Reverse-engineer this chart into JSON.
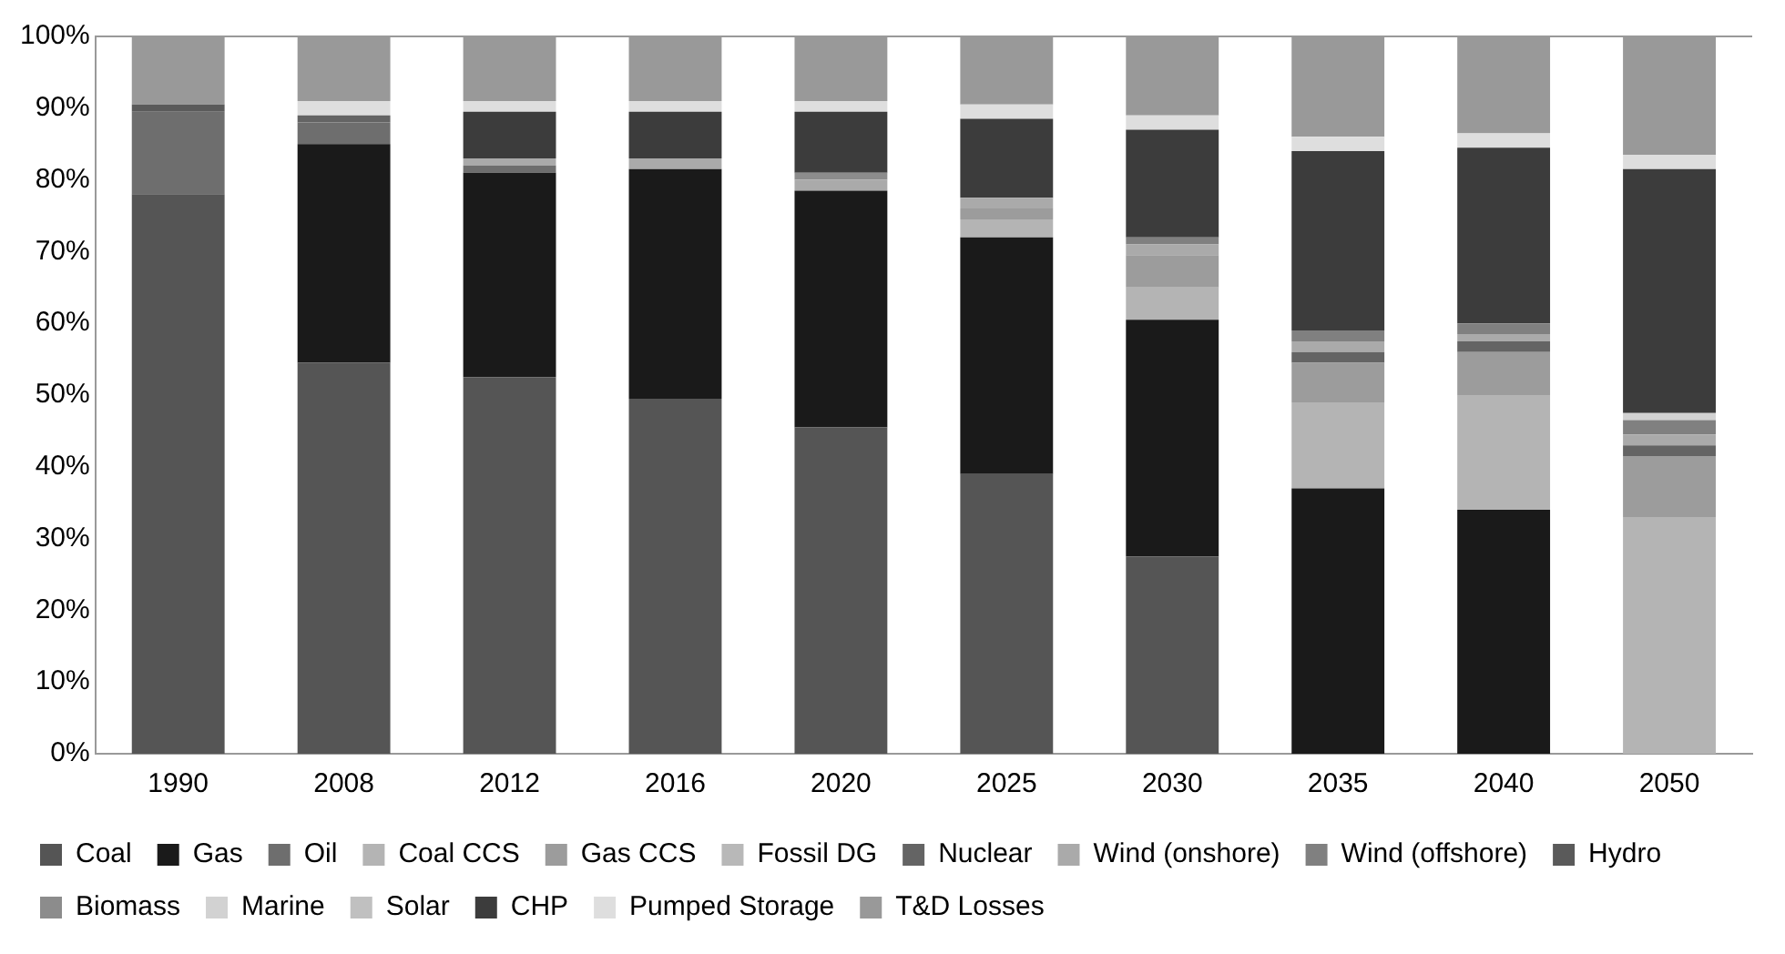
{
  "chart_data": {
    "type": "bar",
    "stacked": true,
    "categories": [
      "1990",
      "2008",
      "2012",
      "2016",
      "2020",
      "2025",
      "2030",
      "2035",
      "2040",
      "2050"
    ],
    "ylim": [
      0,
      100
    ],
    "yticks": [
      {
        "value": 0,
        "label": "0%"
      },
      {
        "value": 10,
        "label": "10%"
      },
      {
        "value": 20,
        "label": "20%"
      },
      {
        "value": 30,
        "label": "30%"
      },
      {
        "value": 40,
        "label": "40%"
      },
      {
        "value": 50,
        "label": "50%"
      },
      {
        "value": 60,
        "label": "60%"
      },
      {
        "value": 70,
        "label": "70%"
      },
      {
        "value": 80,
        "label": "80%"
      },
      {
        "value": 90,
        "label": "90%"
      },
      {
        "value": 100,
        "label": "100%"
      }
    ],
    "grid": false,
    "legend": "bottom",
    "series": [
      {
        "name": "Coal",
        "color": "#555555",
        "values": [
          78,
          54.5,
          52.5,
          49.5,
          45.5,
          39,
          27.5,
          0,
          0,
          0
        ]
      },
      {
        "name": "Gas",
        "color": "#1a1a1a",
        "values": [
          0,
          30.5,
          28.5,
          32,
          33,
          33,
          33,
          37,
          34,
          0
        ]
      },
      {
        "name": "Oil",
        "color": "#6e6e6e",
        "values": [
          11.5,
          3,
          1,
          0,
          0,
          0,
          0,
          0,
          0,
          0
        ]
      },
      {
        "name": "Coal CCS",
        "color": "#b4b4b4",
        "values": [
          0,
          0,
          0,
          0,
          0,
          2.5,
          4.5,
          12,
          16,
          33
        ]
      },
      {
        "name": "Gas CCS",
        "color": "#9c9c9c",
        "values": [
          0,
          0,
          0,
          0,
          0,
          1.5,
          4.5,
          5.5,
          6,
          8.5
        ]
      },
      {
        "name": "Fossil DG",
        "color": "#b8b8b8",
        "values": [
          0,
          0,
          0,
          0,
          0,
          0,
          0,
          0,
          0,
          0
        ]
      },
      {
        "name": "Nuclear",
        "color": "#646464",
        "values": [
          0,
          1,
          0,
          0,
          0,
          0,
          0,
          1.5,
          1.5,
          1.5
        ]
      },
      {
        "name": "Wind (onshore)",
        "color": "#aaaaaa",
        "values": [
          0,
          0,
          1,
          1.5,
          1.5,
          1.5,
          1.5,
          1.5,
          1,
          1.5
        ]
      },
      {
        "name": "Wind (offshore)",
        "color": "#808080",
        "values": [
          0,
          0,
          0,
          0,
          0,
          0,
          1,
          1.5,
          1.5,
          2
        ]
      },
      {
        "name": "Hydro",
        "color": "#5a5a5a",
        "values": [
          1,
          0,
          0,
          0,
          0,
          0,
          0,
          0,
          0,
          0
        ]
      },
      {
        "name": "Biomass",
        "color": "#8c8c8c",
        "values": [
          0,
          0,
          0,
          0,
          1,
          0,
          0,
          0,
          0,
          0
        ]
      },
      {
        "name": "Marine",
        "color": "#d2d2d2",
        "values": [
          0,
          0,
          0,
          0,
          0,
          0,
          0,
          0,
          0,
          1
        ]
      },
      {
        "name": "Solar",
        "color": "#c0c0c0",
        "values": [
          0,
          0,
          0,
          0,
          0,
          0,
          0,
          0,
          0,
          0
        ]
      },
      {
        "name": "CHP",
        "color": "#3c3c3c",
        "values": [
          0,
          0,
          6.5,
          6.5,
          8.5,
          11,
          15,
          25,
          24.5,
          34
        ]
      },
      {
        "name": "Pumped Storage",
        "color": "#dedede",
        "values": [
          0,
          2,
          1.5,
          1.5,
          1.5,
          2,
          2,
          2,
          2,
          2
        ]
      },
      {
        "name": "T&D Losses",
        "color": "#999999",
        "values": [
          9.5,
          9,
          9,
          9,
          9,
          9.5,
          11,
          14,
          13.5,
          16.5
        ]
      }
    ]
  }
}
